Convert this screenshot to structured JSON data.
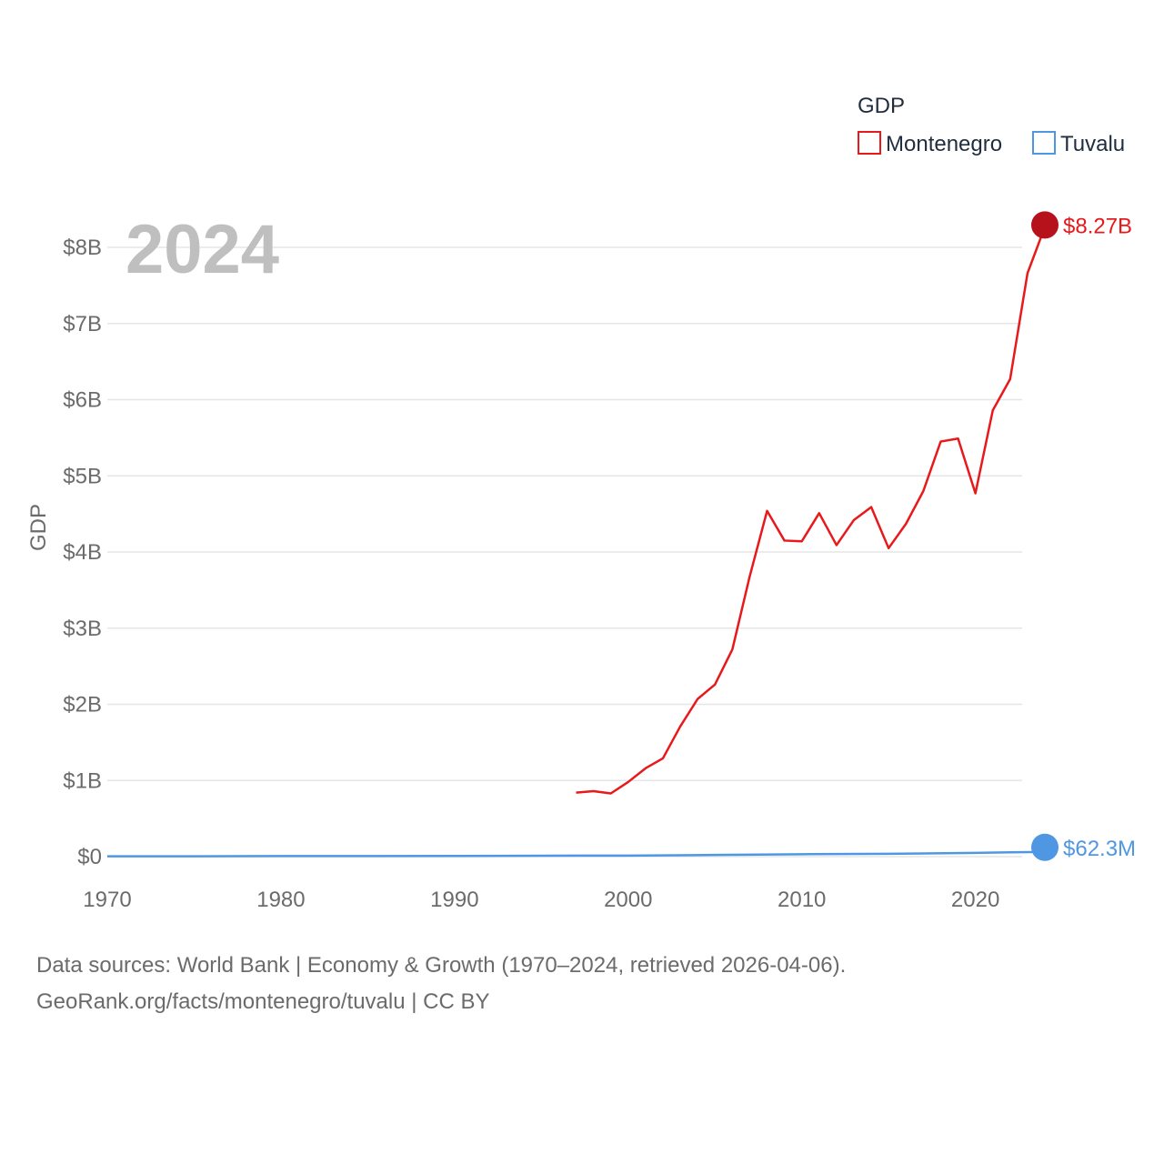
{
  "chart_data": {
    "type": "line",
    "title": "",
    "year_stamp": "2024",
    "xlabel": "",
    "ylabel": "GDP",
    "xlim": [
      1970,
      2024
    ],
    "ylim": [
      0,
      8000000000
    ],
    "x_ticks": [
      1970,
      1980,
      1990,
      2000,
      2010,
      2020
    ],
    "y_ticks": [
      {
        "value": 0,
        "label": "$0"
      },
      {
        "value": 1000000000,
        "label": "$1B"
      },
      {
        "value": 2000000000,
        "label": "$2B"
      },
      {
        "value": 3000000000,
        "label": "$3B"
      },
      {
        "value": 4000000000,
        "label": "$4B"
      },
      {
        "value": 5000000000,
        "label": "$5B"
      },
      {
        "value": 6000000000,
        "label": "$6B"
      },
      {
        "value": 7000000000,
        "label": "$7B"
      },
      {
        "value": 8000000000,
        "label": "$8B"
      }
    ],
    "legend": {
      "title": "GDP",
      "position": "top-right"
    },
    "series": [
      {
        "name": "Montenegro",
        "color": "#e8191b",
        "end_label": "$8.27B",
        "x": [
          1997,
          1998,
          1999,
          2000,
          2001,
          2002,
          2003,
          2004,
          2005,
          2006,
          2007,
          2008,
          2009,
          2010,
          2011,
          2012,
          2013,
          2014,
          2015,
          2016,
          2017,
          2018,
          2019,
          2020,
          2021,
          2022,
          2023,
          2024
        ],
        "values": [
          840000000,
          860000000,
          830000000,
          980000000,
          1160000000,
          1290000000,
          1710000000,
          2070000000,
          2260000000,
          2720000000,
          3680000000,
          4540000000,
          4150000000,
          4140000000,
          4510000000,
          4090000000,
          4420000000,
          4590000000,
          4050000000,
          4370000000,
          4800000000,
          5450000000,
          5490000000,
          4770000000,
          5860000000,
          6270000000,
          7660000000,
          8270000000
        ]
      },
      {
        "name": "Tuvalu",
        "color": "#4f97e3",
        "end_label": "$62.3M",
        "x": [
          1970,
          1975,
          1980,
          1985,
          1990,
          1995,
          2000,
          2005,
          2010,
          2015,
          2020,
          2022,
          2024
        ],
        "values": [
          4000000,
          5000000,
          7000000,
          7000000,
          9000000,
          12000000,
          14000000,
          22000000,
          32000000,
          37000000,
          49000000,
          56000000,
          62300000
        ]
      }
    ]
  },
  "source": {
    "line1": "Data sources: World Bank | Economy & Growth (1970–2024, retrieved 2026-04-06).",
    "line2": "GeoRank.org/facts/montenegro/tuvalu | CC BY"
  }
}
